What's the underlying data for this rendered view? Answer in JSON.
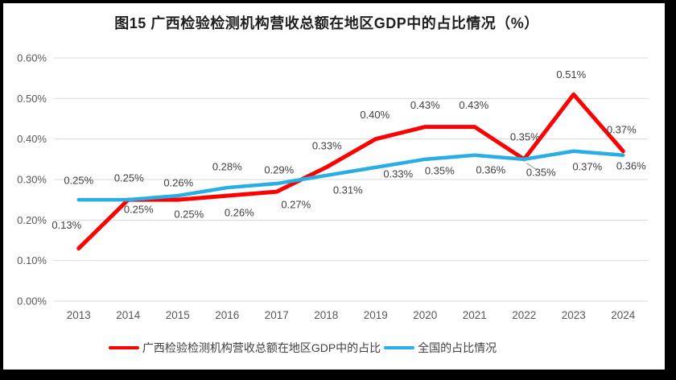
{
  "chart_data": {
    "type": "line",
    "title": "图15 广西检验检测机构营收总额在地区GDP中的占比情况（%）",
    "categories": [
      "2013",
      "2014",
      "2015",
      "2016",
      "2017",
      "2018",
      "2019",
      "2020",
      "2021",
      "2022",
      "2023",
      "2024"
    ],
    "series": [
      {
        "name": "广西检验检测机构营收总额在地区GDP中的占比",
        "color": "#FF0000",
        "line_width": 5,
        "values": [
          0.13,
          0.25,
          0.25,
          0.26,
          0.27,
          0.33,
          0.4,
          0.43,
          0.43,
          0.35,
          0.51,
          0.37
        ],
        "labels": [
          "0.13%",
          "0.25%",
          "0.25%",
          "0.26%",
          "0.27%",
          "0.33%",
          "0.40%",
          "0.43%",
          "0.43%",
          "0.35%",
          "0.51%",
          "0.37%"
        ],
        "label_offsets": [
          [
            -15,
            -29
          ],
          [
            13,
            12
          ],
          [
            14,
            18
          ],
          [
            15,
            21
          ],
          [
            24,
            16
          ],
          [
            1,
            -27
          ],
          [
            -1,
            -30
          ],
          [
            0,
            -27
          ],
          [
            -1,
            -27
          ],
          [
            21,
            16
          ],
          [
            -3,
            -25
          ],
          [
            -2,
            -27
          ]
        ]
      },
      {
        "name": "全国的占比情况",
        "color": "#27AEE4",
        "line_width": 4.5,
        "values": [
          0.25,
          0.25,
          0.26,
          0.28,
          0.29,
          0.31,
          0.33,
          0.35,
          0.36,
          0.35,
          0.37,
          0.36
        ],
        "labels": [
          "0.25%",
          "0.25%",
          "0.26%",
          "0.28%",
          "0.29%",
          "0.31%",
          "0.33%",
          "0.35%",
          "0.36%",
          "0.35%",
          "0.37%",
          "0.36%"
        ],
        "label_offsets": [
          [
            0,
            -24
          ],
          [
            1,
            -27
          ],
          [
            1,
            -16
          ],
          [
            0,
            -26
          ],
          [
            3,
            -17
          ],
          [
            27,
            18
          ],
          [
            28,
            8
          ],
          [
            18,
            14
          ],
          [
            20,
            18
          ],
          [
            1,
            -28
          ],
          [
            17,
            19
          ],
          [
            10,
            13
          ]
        ]
      }
    ],
    "xlabel": "",
    "ylabel": "",
    "ylim": [
      0,
      0.6
    ],
    "ytick_step": 0.1,
    "ytick_labels": [
      "0.00%",
      "0.10%",
      "0.20%",
      "0.30%",
      "0.40%",
      "0.50%",
      "0.60%"
    ],
    "grid": true,
    "legend_position": "bottom",
    "leader_line": {
      "series_index": 0,
      "point_index": 9,
      "color": "#A6A6A6"
    },
    "colors": {
      "gridline": "#D9D9D9",
      "axis_text": "#595959",
      "data_label_text": "#404040",
      "title_text": "#1F1F1F",
      "legend_text": "#404040",
      "frame_border": "#000000"
    }
  }
}
